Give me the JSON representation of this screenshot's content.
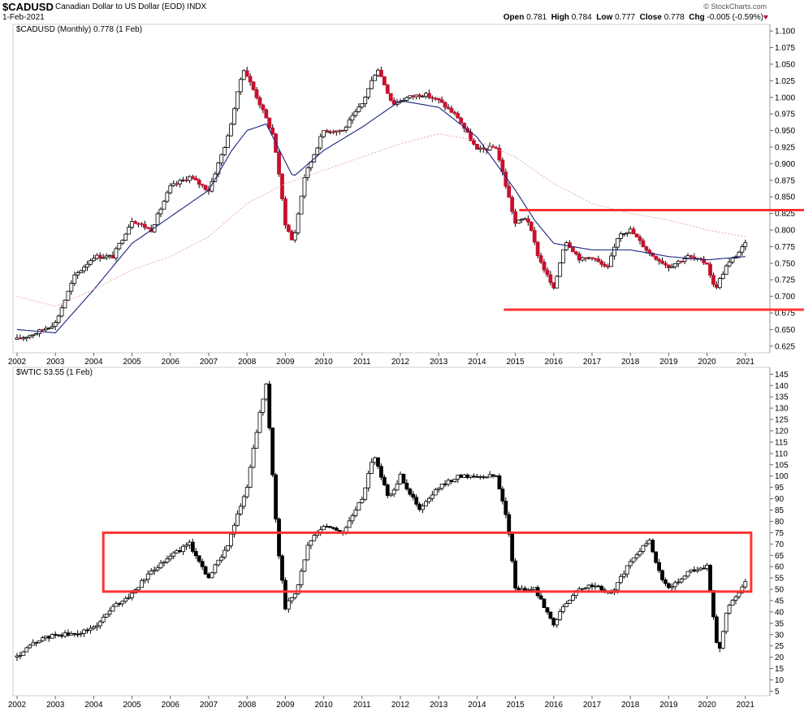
{
  "header": {
    "symbol": "$CADUSD",
    "name": "Canadian Dollar to US Dollar (EOD)",
    "type": "INDX",
    "date": "1-Feb-2021",
    "brand": "© StockCharts.com",
    "open_label": "Open",
    "open": "0.781",
    "high_label": "High",
    "high": "0.784",
    "low_label": "Low",
    "low": "0.777",
    "close_label": "Close",
    "close": "0.778",
    "chg_label": "Chg",
    "chg": "-0.005 (-0.59%)"
  },
  "colors": {
    "up": "#000000",
    "down": "#c8102e",
    "ma_short": "#1a237e",
    "ma_long": "#e8a0a0",
    "annotation": "#ff3333"
  },
  "chart_data": [
    {
      "type": "candlestick",
      "label": "$CADUSD (Monthly) 0.778 (1 Feb)",
      "x_tick_labels": [
        "2002",
        "2003",
        "2004",
        "2005",
        "2006",
        "2007",
        "2008",
        "2009",
        "2010",
        "2011",
        "2012",
        "2013",
        "2014",
        "2015",
        "2016",
        "2017",
        "2018",
        "2019",
        "2020",
        "2021"
      ],
      "y_tick_labels": [
        "1.100",
        "1.075",
        "1.050",
        "1.025",
        "1.000",
        "0.975",
        "0.950",
        "0.925",
        "0.900",
        "0.875",
        "0.850",
        "0.825",
        "0.800",
        "0.775",
        "0.750",
        "0.725",
        "0.700",
        "0.675",
        "0.650",
        "0.625"
      ],
      "ylim": [
        0.615,
        1.11
      ],
      "grid": false,
      "series": [
        {
          "name": "CADUSD close (approx)",
          "x": [
            2002.0,
            2002.5,
            2003.0,
            2003.5,
            2004.0,
            2004.5,
            2005.0,
            2005.5,
            2006.0,
            2006.5,
            2007.0,
            2007.5,
            2007.9,
            2008.3,
            2008.7,
            2009.0,
            2009.2,
            2009.5,
            2010.0,
            2010.5,
            2011.0,
            2011.4,
            2011.8,
            2012.2,
            2012.6,
            2013.0,
            2013.5,
            2014.0,
            2014.5,
            2015.0,
            2015.3,
            2015.6,
            2016.0,
            2016.3,
            2016.7,
            2017.0,
            2017.4,
            2017.7,
            2018.0,
            2018.5,
            2019.0,
            2019.5,
            2020.0,
            2020.2,
            2020.5,
            2021.0
          ],
          "values": [
            0.635,
            0.645,
            0.66,
            0.73,
            0.76,
            0.76,
            0.815,
            0.8,
            0.865,
            0.88,
            0.86,
            0.94,
            1.045,
            0.995,
            0.94,
            0.81,
            0.78,
            0.88,
            0.95,
            0.95,
            0.99,
            1.045,
            0.99,
            1.0,
            1.005,
            0.995,
            0.97,
            0.92,
            0.925,
            0.81,
            0.82,
            0.76,
            0.71,
            0.785,
            0.755,
            0.76,
            0.74,
            0.795,
            0.8,
            0.765,
            0.745,
            0.76,
            0.75,
            0.71,
            0.745,
            0.778
          ]
        },
        {
          "name": "MA short (approx)",
          "x": [
            2002.0,
            2003.0,
            2004.0,
            2005.0,
            2006.0,
            2007.0,
            2007.6,
            2008.0,
            2008.5,
            2009.2,
            2010.0,
            2011.0,
            2012.0,
            2013.0,
            2014.0,
            2015.0,
            2015.5,
            2016.0,
            2017.0,
            2018.0,
            2019.0,
            2020.0,
            2021.0
          ],
          "values": [
            0.65,
            0.645,
            0.71,
            0.78,
            0.82,
            0.86,
            0.92,
            0.95,
            0.96,
            0.88,
            0.92,
            0.955,
            0.995,
            0.985,
            0.94,
            0.86,
            0.815,
            0.78,
            0.77,
            0.77,
            0.76,
            0.755,
            0.76
          ]
        },
        {
          "name": "MA long (approx)",
          "x": [
            2002.0,
            2003.0,
            2004.0,
            2005.0,
            2006.0,
            2007.0,
            2008.0,
            2009.0,
            2010.0,
            2011.0,
            2012.0,
            2013.0,
            2014.0,
            2015.0,
            2016.0,
            2017.0,
            2018.0,
            2019.0,
            2020.0,
            2021.0
          ],
          "values": [
            0.7,
            0.685,
            0.71,
            0.74,
            0.76,
            0.79,
            0.84,
            0.87,
            0.89,
            0.91,
            0.93,
            0.945,
            0.935,
            0.91,
            0.87,
            0.84,
            0.825,
            0.815,
            0.8,
            0.79
          ]
        }
      ],
      "annotations": [
        {
          "kind": "hline",
          "value": 0.83,
          "x_from": 2015.1
        },
        {
          "kind": "hline",
          "value": 0.68,
          "x_from": 2014.7
        }
      ]
    },
    {
      "type": "candlestick",
      "label": "$WTIC 53.55 (1 Feb)",
      "x_tick_labels": [
        "2002",
        "2003",
        "2004",
        "2005",
        "2006",
        "2007",
        "2008",
        "2009",
        "2010",
        "2011",
        "2012",
        "2013",
        "2014",
        "2015",
        "2016",
        "2017",
        "2018",
        "2019",
        "2020",
        "2021"
      ],
      "y_tick_labels": [
        "145",
        "140",
        "135",
        "130",
        "125",
        "120",
        "115",
        "110",
        "105",
        "100",
        "95",
        "90",
        "85",
        "80",
        "75",
        "70",
        "65",
        "60",
        "55",
        "50",
        "45",
        "40",
        "35",
        "30",
        "25",
        "20",
        "15",
        "10",
        "5"
      ],
      "ylim": [
        3,
        148
      ],
      "grid": false,
      "series": [
        {
          "name": "WTIC close (approx)",
          "x": [
            2002.0,
            2002.5,
            2003.0,
            2003.5,
            2004.0,
            2004.5,
            2005.0,
            2005.5,
            2006.0,
            2006.5,
            2007.0,
            2007.5,
            2008.0,
            2008.3,
            2008.5,
            2008.8,
            2009.0,
            2009.3,
            2009.6,
            2010.0,
            2010.5,
            2011.0,
            2011.3,
            2011.7,
            2012.0,
            2012.5,
            2013.0,
            2013.5,
            2014.0,
            2014.5,
            2014.8,
            2015.0,
            2015.5,
            2016.0,
            2016.5,
            2017.0,
            2017.5,
            2018.0,
            2018.5,
            2018.8,
            2019.0,
            2019.5,
            2020.0,
            2020.3,
            2020.5,
            2021.0
          ],
          "values": [
            20,
            27,
            30,
            30,
            33,
            42,
            48,
            58,
            65,
            70,
            55,
            70,
            95,
            125,
            140,
            70,
            42,
            50,
            70,
            78,
            75,
            90,
            110,
            90,
            100,
            85,
            95,
            100,
            100,
            100,
            80,
            50,
            50,
            35,
            48,
            52,
            48,
            62,
            72,
            55,
            50,
            58,
            60,
            20,
            40,
            53.55
          ]
        }
      ],
      "annotations": [
        {
          "kind": "box",
          "y_from": 49,
          "y_to": 75,
          "x_from": 2004.25,
          "x_to": 2021.15
        }
      ]
    }
  ]
}
